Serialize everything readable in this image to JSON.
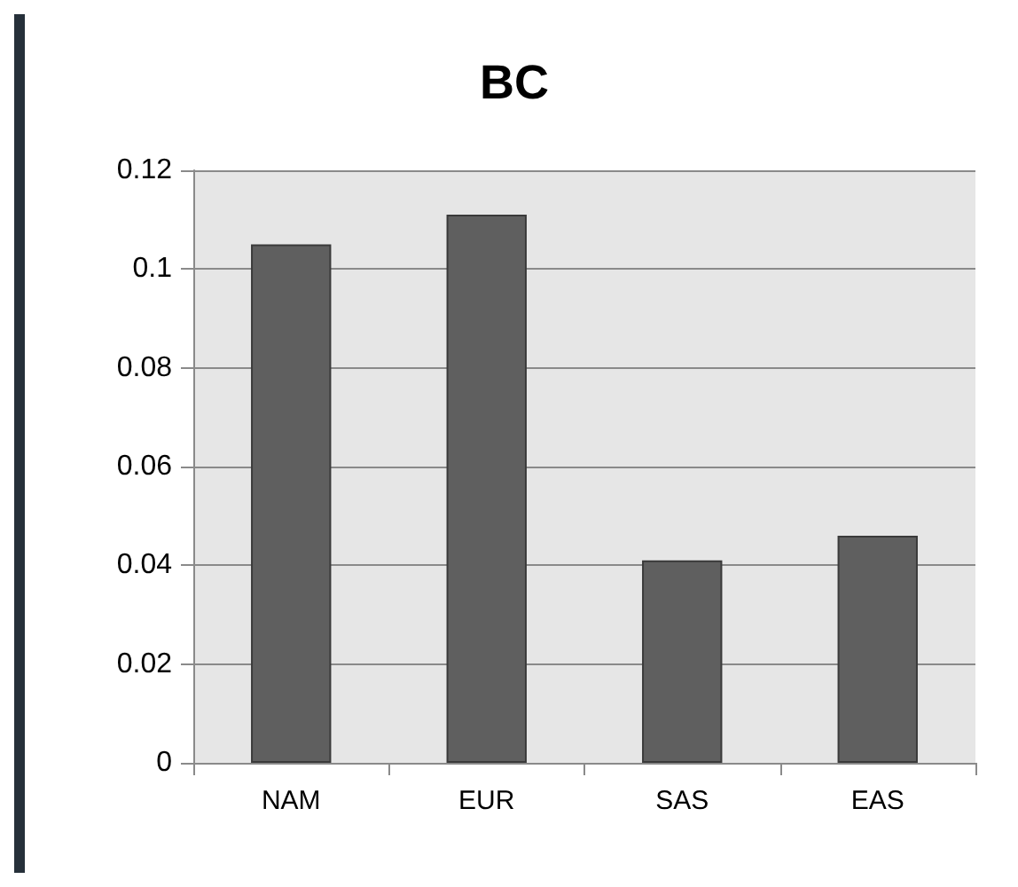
{
  "chart_data": {
    "type": "bar",
    "title": "BC",
    "categories": [
      "NAM",
      "EUR",
      "SAS",
      "EAS"
    ],
    "values": [
      0.105,
      0.111,
      0.041,
      0.046
    ],
    "color": "#5f5f5f",
    "ylim": [
      0,
      0.12
    ],
    "yticks": [
      0,
      0.02,
      0.04,
      0.06,
      0.08,
      0.1,
      0.12
    ],
    "grid": "y"
  }
}
